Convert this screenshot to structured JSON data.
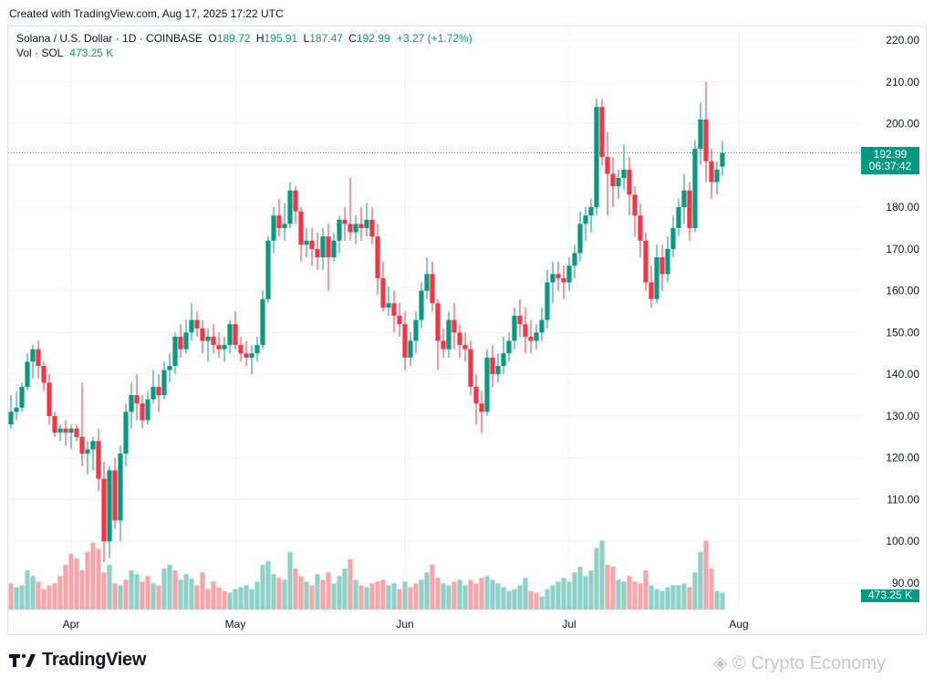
{
  "header": {
    "created": "Created with TradingView.com, Aug 17, 2025 17:22 UTC"
  },
  "legend": {
    "symbol": "Solana / U.S. Dollar · 1D · COINBASE",
    "o_label": "O",
    "o_value": "189.72",
    "h_label": "H",
    "h_value": "195.91",
    "l_label": "L",
    "l_value": "187.47",
    "c_label": "C",
    "c_value": "192.99",
    "change": "+3.27 (+1.72%)",
    "vol_label": "Vol · SOL",
    "vol_value": "473.25 K"
  },
  "badges": {
    "price": "192.99",
    "countdown": "06:37:42",
    "volume": "473.25 K"
  },
  "branding": {
    "logo_text": "TradingView",
    "watermark": "Crypto Economy"
  },
  "colors": {
    "up": "#089981",
    "down": "#f23645",
    "up_vol": "#8fd1c7",
    "down_vol": "#f5a6ab",
    "grid": "#f0f3fa"
  },
  "chart_data": {
    "type": "candlestick",
    "symbol": "SOL/USD",
    "interval": "1D",
    "exchange": "COINBASE",
    "ylim": [
      85,
      225
    ],
    "y_ticks": [
      "220.00",
      "210.00",
      "200.00",
      "190.00",
      "180.00",
      "170.00",
      "160.00",
      "150.00",
      "140.00",
      "130.00",
      "120.00",
      "110.00",
      "100.00",
      "90.00"
    ],
    "x_ticks": [
      "Apr",
      "May",
      "Jun",
      "Jul",
      "Aug"
    ],
    "last_price": 192.99,
    "candles": [
      [
        128,
        135,
        127,
        131
      ],
      [
        131,
        136,
        129,
        132
      ],
      [
        132,
        138,
        131,
        137
      ],
      [
        137,
        145,
        136,
        143
      ],
      [
        143,
        147,
        139,
        146
      ],
      [
        146,
        148,
        139,
        142
      ],
      [
        142,
        143,
        136,
        138
      ],
      [
        138,
        140,
        128,
        130
      ],
      [
        130,
        131,
        125,
        126
      ],
      [
        126,
        128,
        124,
        127
      ],
      [
        127,
        129,
        123,
        126
      ],
      [
        126,
        128,
        122,
        127
      ],
      [
        127,
        128,
        124,
        125
      ],
      [
        125,
        138,
        118,
        121
      ],
      [
        121,
        124,
        116,
        122
      ],
      [
        122,
        125,
        117,
        124
      ],
      [
        124,
        127,
        112,
        115
      ],
      [
        115,
        119,
        95,
        100
      ],
      [
        100,
        118,
        96,
        117
      ],
      [
        117,
        120,
        103,
        105
      ],
      [
        105,
        123,
        100,
        121
      ],
      [
        121,
        133,
        118,
        131
      ],
      [
        131,
        138,
        127,
        135
      ],
      [
        135,
        140,
        129,
        133
      ],
      [
        133,
        135,
        127,
        129
      ],
      [
        129,
        136,
        128,
        134
      ],
      [
        134,
        141,
        133,
        137
      ],
      [
        137,
        140,
        131,
        135
      ],
      [
        135,
        143,
        134,
        141
      ],
      [
        141,
        145,
        138,
        142
      ],
      [
        142,
        150,
        140,
        149
      ],
      [
        149,
        152,
        144,
        146
      ],
      [
        146,
        153,
        145,
        150
      ],
      [
        150,
        157,
        148,
        153
      ],
      [
        153,
        155,
        149,
        151
      ],
      [
        151,
        153,
        145,
        148
      ],
      [
        148,
        151,
        143,
        149
      ],
      [
        149,
        152,
        145,
        147
      ],
      [
        147,
        150,
        144,
        146
      ],
      [
        146,
        149,
        143,
        147
      ],
      [
        147,
        153,
        145,
        152
      ],
      [
        152,
        155,
        146,
        147
      ],
      [
        147,
        149,
        143,
        145
      ],
      [
        145,
        148,
        142,
        144
      ],
      [
        144,
        147,
        140,
        145
      ],
      [
        145,
        149,
        143,
        147
      ],
      [
        147,
        160,
        146,
        158
      ],
      [
        158,
        173,
        157,
        172
      ],
      [
        172,
        180,
        169,
        178
      ],
      [
        178,
        182,
        173,
        175
      ],
      [
        175,
        181,
        172,
        176
      ],
      [
        176,
        186,
        175,
        184
      ],
      [
        184,
        185,
        176,
        179
      ],
      [
        179,
        180,
        167,
        171
      ],
      [
        171,
        175,
        168,
        172
      ],
      [
        172,
        175,
        166,
        170
      ],
      [
        170,
        174,
        165,
        168
      ],
      [
        168,
        175,
        165,
        173
      ],
      [
        173,
        176,
        160,
        168
      ],
      [
        168,
        174,
        167,
        172
      ],
      [
        172,
        178,
        169,
        177
      ],
      [
        177,
        180,
        172,
        176
      ],
      [
        176,
        187,
        172,
        174
      ],
      [
        174,
        178,
        171,
        176
      ],
      [
        176,
        180,
        172,
        175
      ],
      [
        175,
        181,
        173,
        177
      ],
      [
        177,
        180,
        171,
        173
      ],
      [
        173,
        176,
        159,
        163
      ],
      [
        163,
        167,
        155,
        156
      ],
      [
        156,
        161,
        154,
        157
      ],
      [
        157,
        160,
        150,
        154
      ],
      [
        154,
        157,
        149,
        152
      ],
      [
        152,
        155,
        141,
        144
      ],
      [
        144,
        150,
        142,
        148
      ],
      [
        148,
        155,
        145,
        153
      ],
      [
        153,
        162,
        151,
        160
      ],
      [
        160,
        168,
        158,
        164
      ],
      [
        164,
        167,
        155,
        157
      ],
      [
        157,
        158,
        141,
        148
      ],
      [
        148,
        151,
        144,
        146
      ],
      [
        146,
        155,
        144,
        153
      ],
      [
        153,
        157,
        146,
        150
      ],
      [
        150,
        152,
        144,
        147
      ],
      [
        147,
        150,
        143,
        146
      ],
      [
        146,
        148,
        135,
        137
      ],
      [
        137,
        140,
        128,
        133
      ],
      [
        133,
        136,
        126,
        131
      ],
      [
        131,
        146,
        130,
        144
      ],
      [
        144,
        147,
        137,
        140
      ],
      [
        140,
        145,
        138,
        142
      ],
      [
        142,
        149,
        140,
        145
      ],
      [
        145,
        150,
        143,
        148
      ],
      [
        148,
        156,
        146,
        154
      ],
      [
        154,
        158,
        149,
        152
      ],
      [
        152,
        156,
        145,
        149
      ],
      [
        149,
        153,
        145,
        148
      ],
      [
        148,
        152,
        146,
        150
      ],
      [
        150,
        156,
        148,
        153
      ],
      [
        153,
        165,
        151,
        162
      ],
      [
        162,
        167,
        157,
        164
      ],
      [
        164,
        167,
        160,
        163
      ],
      [
        163,
        166,
        158,
        162
      ],
      [
        162,
        168,
        160,
        166
      ],
      [
        166,
        171,
        163,
        169
      ],
      [
        169,
        179,
        167,
        176
      ],
      [
        176,
        180,
        172,
        178
      ],
      [
        178,
        182,
        174,
        180
      ],
      [
        180,
        206,
        178,
        204
      ],
      [
        204,
        206,
        190,
        192
      ],
      [
        192,
        198,
        178,
        188
      ],
      [
        188,
        192,
        180,
        185
      ],
      [
        185,
        189,
        182,
        187
      ],
      [
        187,
        195,
        184,
        189
      ],
      [
        189,
        192,
        178,
        183
      ],
      [
        183,
        185,
        173,
        178
      ],
      [
        178,
        181,
        168,
        172
      ],
      [
        172,
        174,
        160,
        162
      ],
      [
        162,
        166,
        156,
        158
      ],
      [
        158,
        171,
        157,
        168
      ],
      [
        168,
        171,
        160,
        164
      ],
      [
        164,
        173,
        162,
        170
      ],
      [
        170,
        178,
        168,
        175
      ],
      [
        175,
        182,
        173,
        180
      ],
      [
        180,
        188,
        176,
        184
      ],
      [
        184,
        186,
        172,
        175
      ],
      [
        175,
        196,
        174,
        194
      ],
      [
        194,
        205,
        190,
        201
      ],
      [
        201,
        210,
        186,
        191
      ],
      [
        191,
        194,
        182,
        186
      ],
      [
        186,
        191,
        183,
        189
      ],
      [
        189.72,
        195.91,
        187.47,
        192.99
      ]
    ],
    "volume": [
      [
        28,
        "d"
      ],
      [
        24,
        "u"
      ],
      [
        26,
        "u"
      ],
      [
        42,
        "u"
      ],
      [
        36,
        "u"
      ],
      [
        30,
        "d"
      ],
      [
        22,
        "d"
      ],
      [
        26,
        "d"
      ],
      [
        28,
        "d"
      ],
      [
        36,
        "d"
      ],
      [
        48,
        "d"
      ],
      [
        60,
        "d"
      ],
      [
        55,
        "d"
      ],
      [
        42,
        "d"
      ],
      [
        62,
        "d"
      ],
      [
        72,
        "d"
      ],
      [
        65,
        "d"
      ],
      [
        40,
        "d"
      ],
      [
        48,
        "u"
      ],
      [
        28,
        "d"
      ],
      [
        26,
        "u"
      ],
      [
        32,
        "d"
      ],
      [
        42,
        "u"
      ],
      [
        38,
        "u"
      ],
      [
        30,
        "d"
      ],
      [
        36,
        "d"
      ],
      [
        28,
        "u"
      ],
      [
        26,
        "d"
      ],
      [
        44,
        "u"
      ],
      [
        48,
        "u"
      ],
      [
        42,
        "d"
      ],
      [
        32,
        "u"
      ],
      [
        38,
        "u"
      ],
      [
        33,
        "u"
      ],
      [
        26,
        "d"
      ],
      [
        40,
        "d"
      ],
      [
        22,
        "d"
      ],
      [
        30,
        "d"
      ],
      [
        24,
        "d"
      ],
      [
        20,
        "d"
      ],
      [
        18,
        "u"
      ],
      [
        22,
        "u"
      ],
      [
        24,
        "u"
      ],
      [
        26,
        "u"
      ],
      [
        22,
        "u"
      ],
      [
        30,
        "u"
      ],
      [
        48,
        "u"
      ],
      [
        52,
        "u"
      ],
      [
        38,
        "u"
      ],
      [
        34,
        "d"
      ],
      [
        32,
        "u"
      ],
      [
        62,
        "u"
      ],
      [
        44,
        "d"
      ],
      [
        36,
        "d"
      ],
      [
        30,
        "u"
      ],
      [
        26,
        "d"
      ],
      [
        38,
        "u"
      ],
      [
        32,
        "d"
      ],
      [
        40,
        "d"
      ],
      [
        28,
        "u"
      ],
      [
        36,
        "u"
      ],
      [
        44,
        "u"
      ],
      [
        54,
        "d"
      ],
      [
        32,
        "u"
      ],
      [
        26,
        "d"
      ],
      [
        24,
        "u"
      ],
      [
        28,
        "d"
      ],
      [
        30,
        "d"
      ],
      [
        32,
        "d"
      ],
      [
        26,
        "u"
      ],
      [
        28,
        "u"
      ],
      [
        22,
        "d"
      ],
      [
        30,
        "u"
      ],
      [
        24,
        "d"
      ],
      [
        28,
        "d"
      ],
      [
        32,
        "u"
      ],
      [
        40,
        "u"
      ],
      [
        48,
        "d"
      ],
      [
        34,
        "d"
      ],
      [
        28,
        "u"
      ],
      [
        26,
        "u"
      ],
      [
        30,
        "d"
      ],
      [
        32,
        "u"
      ],
      [
        26,
        "u"
      ],
      [
        32,
        "d"
      ],
      [
        28,
        "d"
      ],
      [
        34,
        "d"
      ],
      [
        36,
        "u"
      ],
      [
        32,
        "u"
      ],
      [
        28,
        "u"
      ],
      [
        24,
        "u"
      ],
      [
        20,
        "u"
      ],
      [
        22,
        "u"
      ],
      [
        26,
        "u"
      ],
      [
        34,
        "u"
      ],
      [
        20,
        "d"
      ],
      [
        18,
        "d"
      ],
      [
        14,
        "u"
      ],
      [
        22,
        "u"
      ],
      [
        26,
        "u"
      ],
      [
        30,
        "u"
      ],
      [
        34,
        "u"
      ],
      [
        30,
        "u"
      ],
      [
        40,
        "u"
      ],
      [
        46,
        "u"
      ],
      [
        36,
        "u"
      ],
      [
        42,
        "u"
      ],
      [
        66,
        "u"
      ],
      [
        74,
        "u"
      ],
      [
        48,
        "d"
      ],
      [
        46,
        "d"
      ],
      [
        32,
        "u"
      ],
      [
        30,
        "u"
      ],
      [
        36,
        "d"
      ],
      [
        30,
        "d"
      ],
      [
        28,
        "d"
      ],
      [
        42,
        "d"
      ],
      [
        26,
        "u"
      ],
      [
        22,
        "u"
      ],
      [
        20,
        "u"
      ],
      [
        24,
        "u"
      ],
      [
        26,
        "u"
      ],
      [
        26,
        "u"
      ],
      [
        28,
        "u"
      ],
      [
        24,
        "d"
      ],
      [
        40,
        "u"
      ],
      [
        62,
        "u"
      ],
      [
        74,
        "d"
      ],
      [
        44,
        "d"
      ],
      [
        20,
        "u"
      ],
      [
        18,
        "u"
      ]
    ]
  }
}
